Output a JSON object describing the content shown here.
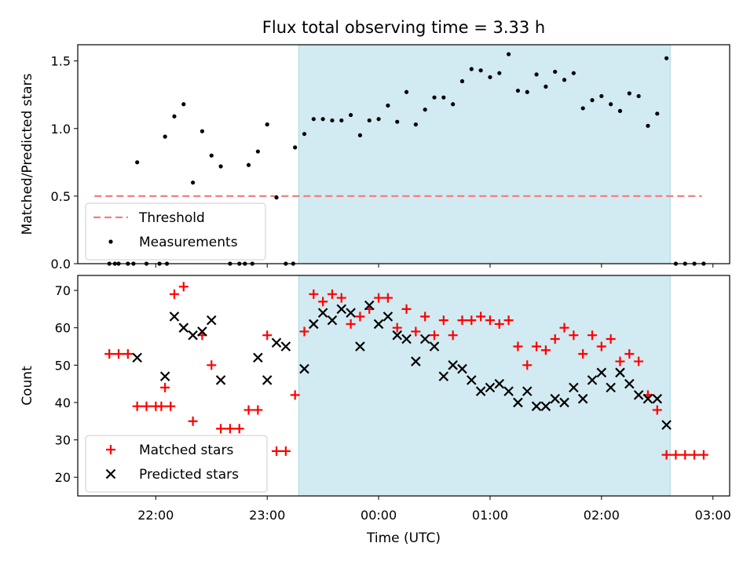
{
  "title": "Flux total observing time = 3.33 h",
  "xlabel": "Time (UTC)",
  "x_ticks": [
    "22:00",
    "23:00",
    "00:00",
    "01:00",
    "02:00",
    "03:00"
  ],
  "colors": {
    "threshold": "#f08080",
    "measurements": "#000000",
    "matched": "#ff0000",
    "predicted": "#000000",
    "shade": "#add8e6"
  },
  "chart_data": [
    {
      "type": "scatter",
      "ylabel": "Matched/Predicted stars",
      "ylim": [
        0,
        1.62
      ],
      "yticks": [
        "0.0",
        "0.5",
        "1.0",
        "1.5"
      ],
      "x_range_hours": [
        -2.7,
        3.15
      ],
      "shaded_span": [
        "23:17",
        "02:37"
      ],
      "threshold": 0.5,
      "legend": {
        "position": "lower-left",
        "entries": [
          "Threshold",
          "Measurements"
        ]
      },
      "series": [
        {
          "name": "Measurements",
          "x": [
            "21:35",
            "21:40",
            "21:45",
            "21:50",
            "21:55",
            "22:05",
            "22:10",
            "22:15",
            "22:20",
            "22:25",
            "22:30",
            "22:35",
            "22:40",
            "22:45",
            "22:50",
            "22:55",
            "23:00",
            "23:05",
            "23:10",
            "23:15",
            "23:20",
            "23:25",
            "23:30",
            "23:35",
            "23:40",
            "23:45",
            "23:50",
            "23:55",
            "00:00",
            "00:05",
            "00:10",
            "00:15",
            "00:20",
            "00:25",
            "00:30",
            "00:35",
            "00:40",
            "00:45",
            "00:50",
            "00:55",
            "01:00",
            "01:05",
            "01:10",
            "01:15",
            "01:20",
            "01:25",
            "01:30",
            "01:35",
            "01:40",
            "01:45",
            "01:50",
            "01:55",
            "02:00",
            "02:05",
            "02:10",
            "02:15",
            "02:20",
            "02:25",
            "02:30",
            "02:35",
            "02:40",
            "02:45",
            "02:50",
            "02:55",
            "21:38",
            "21:48",
            "22:02",
            "22:06",
            "22:48",
            "22:52",
            "23:14"
          ],
          "y": [
            0,
            0,
            0,
            0.75,
            0,
            0.94,
            1.09,
            1.18,
            0.6,
            0.98,
            0.8,
            0.72,
            0,
            0,
            0.73,
            0.83,
            1.03,
            0.49,
            0,
            0.86,
            0.96,
            1.07,
            1.07,
            1.06,
            1.06,
            1.1,
            0.95,
            1.06,
            1.07,
            1.17,
            1.05,
            1.27,
            1.03,
            1.14,
            1.23,
            1.23,
            1.18,
            1.35,
            1.44,
            1.43,
            1.38,
            1.41,
            1.55,
            1.28,
            1.27,
            1.4,
            1.31,
            1.42,
            1.36,
            1.41,
            1.15,
            1.21,
            1.24,
            1.18,
            1.13,
            1.26,
            1.24,
            1.02,
            1.11,
            1.52,
            0,
            0,
            0,
            0,
            0,
            0,
            0,
            0,
            0,
            0,
            0
          ]
        }
      ]
    },
    {
      "type": "scatter",
      "ylabel": "Count",
      "ylim": [
        15,
        74
      ],
      "yticks": [
        "20",
        "30",
        "40",
        "50",
        "60",
        "70"
      ],
      "x_range_hours": [
        -2.7,
        3.15
      ],
      "shaded_span": [
        "23:17",
        "02:37"
      ],
      "legend": {
        "position": "lower-left",
        "entries": [
          "Matched stars",
          "Predicted stars"
        ]
      },
      "series": [
        {
          "name": "Matched stars",
          "marker": "+",
          "x": [
            "21:35",
            "21:40",
            "21:45",
            "21:50",
            "21:55",
            "22:00",
            "22:05",
            "22:10",
            "22:15",
            "22:20",
            "22:25",
            "22:30",
            "22:35",
            "22:40",
            "22:45",
            "22:50",
            "22:55",
            "23:00",
            "23:05",
            "23:10",
            "23:15",
            "23:20",
            "23:25",
            "23:30",
            "23:35",
            "23:40",
            "23:45",
            "23:50",
            "23:55",
            "00:00",
            "00:05",
            "00:10",
            "00:15",
            "00:20",
            "00:25",
            "00:30",
            "00:35",
            "00:40",
            "00:45",
            "00:50",
            "00:55",
            "01:00",
            "01:05",
            "01:10",
            "01:15",
            "01:20",
            "01:25",
            "01:30",
            "01:35",
            "01:40",
            "01:45",
            "01:50",
            "01:55",
            "02:00",
            "02:05",
            "02:10",
            "02:15",
            "02:20",
            "02:25",
            "02:30",
            "02:35",
            "02:40",
            "02:45",
            "02:50",
            "02:55",
            "22:03",
            "22:08"
          ],
          "y": [
            53,
            53,
            53,
            39,
            39,
            39,
            44,
            69,
            71,
            35,
            58,
            50,
            33,
            33,
            33,
            38,
            38,
            58,
            27,
            27,
            42,
            59,
            69,
            67,
            69,
            68,
            61,
            63,
            65,
            68,
            68,
            60,
            65,
            59,
            63,
            58,
            62,
            58,
            62,
            62,
            63,
            62,
            61,
            62,
            55,
            50,
            55,
            54,
            57,
            60,
            58,
            53,
            58,
            55,
            57,
            51,
            53,
            51,
            42,
            38,
            26,
            26,
            26,
            26,
            26,
            39,
            39
          ]
        },
        {
          "name": "Predicted stars",
          "marker": "x",
          "x": [
            "21:50",
            "22:05",
            "22:10",
            "22:15",
            "22:20",
            "22:25",
            "22:30",
            "22:35",
            "22:55",
            "23:00",
            "23:05",
            "23:10",
            "23:20",
            "23:25",
            "23:30",
            "23:35",
            "23:40",
            "23:45",
            "23:50",
            "23:55",
            "00:00",
            "00:05",
            "00:10",
            "00:15",
            "00:20",
            "00:25",
            "00:30",
            "00:35",
            "00:40",
            "00:45",
            "00:50",
            "00:55",
            "01:00",
            "01:05",
            "01:10",
            "01:15",
            "01:20",
            "01:25",
            "01:30",
            "01:35",
            "01:40",
            "01:45",
            "01:50",
            "01:55",
            "02:00",
            "02:05",
            "02:10",
            "02:15",
            "02:20",
            "02:25",
            "02:30",
            "02:35"
          ],
          "y": [
            52,
            47,
            63,
            60,
            58,
            59,
            62,
            46,
            52,
            46,
            56,
            55,
            49,
            61,
            64,
            62,
            65,
            64,
            55,
            66,
            61,
            63,
            58,
            57,
            51,
            57,
            55,
            47,
            50,
            49,
            46,
            43,
            44,
            45,
            43,
            40,
            43,
            39,
            39,
            41,
            40,
            44,
            41,
            46,
            48,
            44,
            48,
            45,
            42,
            41,
            41,
            34
          ]
        }
      ]
    }
  ]
}
